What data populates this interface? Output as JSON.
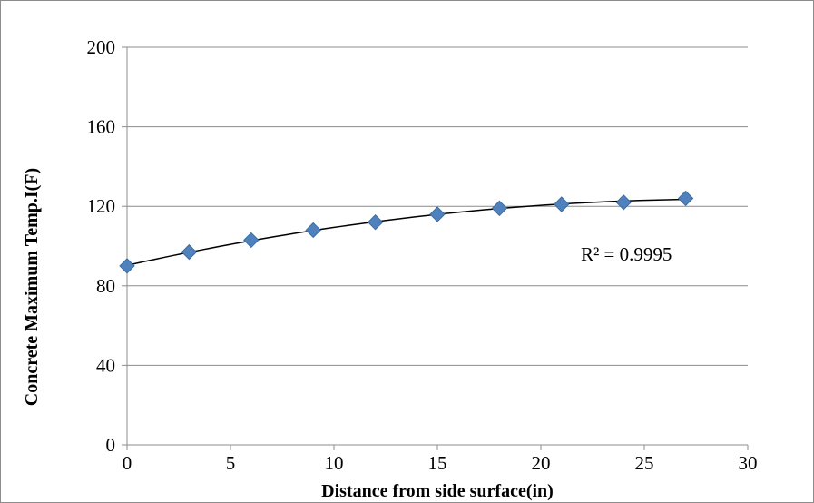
{
  "chart_data": {
    "type": "scatter",
    "title": "",
    "xlabel": "Distance from side surface(in)",
    "ylabel": "Concrete Maximum Temp.I(F)",
    "xlim": [
      0,
      30
    ],
    "ylim": [
      0,
      200
    ],
    "x_ticks": [
      0,
      5,
      10,
      15,
      20,
      25,
      30
    ],
    "y_ticks": [
      0,
      40,
      80,
      120,
      160,
      200
    ],
    "grid": "horizontal",
    "legend": "none",
    "series": [
      {
        "marker": "diamond",
        "color": "#4f81bd",
        "x": [
          0,
          3,
          6,
          9,
          12,
          15,
          18,
          21,
          24,
          27
        ],
        "y": [
          90,
          97,
          103,
          108,
          112,
          116,
          119,
          121,
          122,
          124
        ]
      }
    ],
    "trendline": {
      "type": "polynomial",
      "color": "#000000",
      "label": "R² = 0.9995"
    }
  }
}
